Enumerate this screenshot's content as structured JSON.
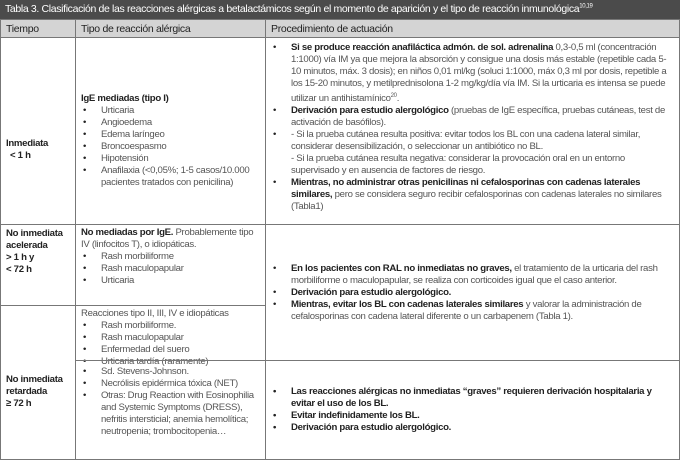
{
  "title": {
    "text": "Tabla 3. Clasificación de las reacciones alérgicas a betalactámicos según el momento de aparición y el tipo de reacción inmunológica",
    "refs": "10,19"
  },
  "headers": [
    "Tiempo",
    "Tipo de reacción alérgica",
    "Procedimiento de actuación"
  ],
  "row1": {
    "time": [
      "Inmediata",
      "< 1 h"
    ],
    "type_title": "IgE mediadas (tipo I)",
    "type_items": [
      "Urticaria",
      "Angioedema",
      "Edema laríngeo",
      "Broncoespasmo",
      "Hipotensión",
      "Anafilaxia (<0,05%; 1-5 casos/10.000 pacientes tratados con penicilina)"
    ],
    "proc": [
      {
        "bold": "Si se produce reacción anafiláctica admón. de sol. adrenalina",
        "text": " 0,3-0,5 ml (concentración 1:1000) vía IM ya que mejora la absorción y consigue una dosis más estable (repetible cada 5-10 minutos, máx. 3 dosis); en niños 0,01 ml/kg (soluci 1:1000, máx 0,3 ml por dosis, repetible a los 15-20 minutos, y metilprednisolona 1-2 mg/kg/día vía IM. Si la urticaria es intensa se puede utilizar un antihistamínico",
        "sup": "20",
        "end": "."
      },
      {
        "bold": "Derivación para estudio alergológico",
        "text": " (pruebas de IgE específica, pruebas cutáneas, test de activación de basófilos)."
      },
      {
        "bold": "",
        "text": " - Si la prueba cutánea resulta positiva: evitar todos los BL con una cadena lateral similar, considerar desensibilización, o seleccionar un antibiótico no BL.",
        "text2": "- Si la prueba cutánea resulta negativa: considerar la provocación oral en un entorno supervisado y en ausencia de factores de riesgo."
      },
      {
        "bold": "Mientras, no administrar otras penicilinas ni cefalosporinas con cadenas laterales similares,",
        "text": " pero se considera seguro recibir cefalosporinas con cadenas laterales no similares (Tabla1)"
      }
    ]
  },
  "row2": {
    "time": [
      "No inmediata",
      "acelerada",
      "> 1 h y",
      "< 72 h"
    ],
    "type_bold": "No mediadas por  IgE.",
    "type_text": " Probablemente tipo IV (linfocitos T), o idiopáticas.",
    "type_items": [
      "Rash morbiliforme",
      "Rash maculopapular",
      "Urticaria"
    ]
  },
  "row2b": {
    "type_title": "Reacciones tipo II, III, IV e idiopáticas",
    "type_items": [
      "Rash morbiliforme.",
      "Rash maculopapular",
      "Enfermedad del suero",
      "Urticaria tardía (raramente)"
    ],
    "proc": [
      {
        "bold": "En los pacientes con RAL no inmediatas no graves,",
        "text": " el tratamiento de la urticaria del rash morbiliforme o maculopapular, se realiza con corticoides igual que el caso anterior."
      },
      {
        "bold": "Derivación para estudio alergológico.",
        "text": ""
      },
      {
        "bold": "Mientras, evitar los BL con cadenas laterales similares",
        "text": " y valorar la administración de cefalosporinas con cadena lateral diferente o un carbapenem (Tabla 1)."
      }
    ]
  },
  "row3": {
    "time": [
      "No inmediata",
      "retardada",
      "≥ 72 h"
    ],
    "type_items": [
      "Sd. Stevens-Johnson.",
      "Necrólisis epidérmica tóxica (NET)",
      "Otras: Drug Reaction with Eosinophilia and Systemic Symptoms (DRESS), nefritis intersticial; anemia hemolítica; neutropenia; trombocitopenia…"
    ],
    "proc": [
      "Las reacciones alérgicas no inmediatas “graves” requieren derivación hospitalaria y evitar el uso de los BL.",
      "Evitar indefinidamente los BL.",
      "Derivación para estudio alergológico."
    ]
  }
}
